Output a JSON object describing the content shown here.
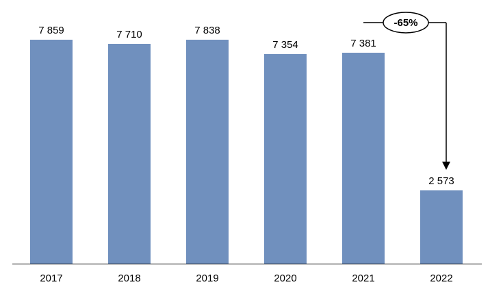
{
  "chart_data": {
    "type": "bar",
    "title": "",
    "xlabel": "",
    "ylabel": "",
    "categories": [
      "2017",
      "2018",
      "2019",
      "2020",
      "2021",
      "2022"
    ],
    "values": [
      7859,
      7710,
      7838,
      7354,
      7381,
      2573
    ],
    "value_labels": [
      "7 859",
      "7 710",
      "7 838",
      "7 354",
      "7 381",
      "2 573"
    ],
    "ylim": [
      0,
      9000
    ],
    "grid": false,
    "legend": false,
    "bar_color": "#7090be",
    "axis_color": "#000000",
    "annotation": {
      "label": "-65%",
      "type": "ellipse-callout-with-arrow",
      "from_category": "2021",
      "to_category": "2022"
    }
  }
}
